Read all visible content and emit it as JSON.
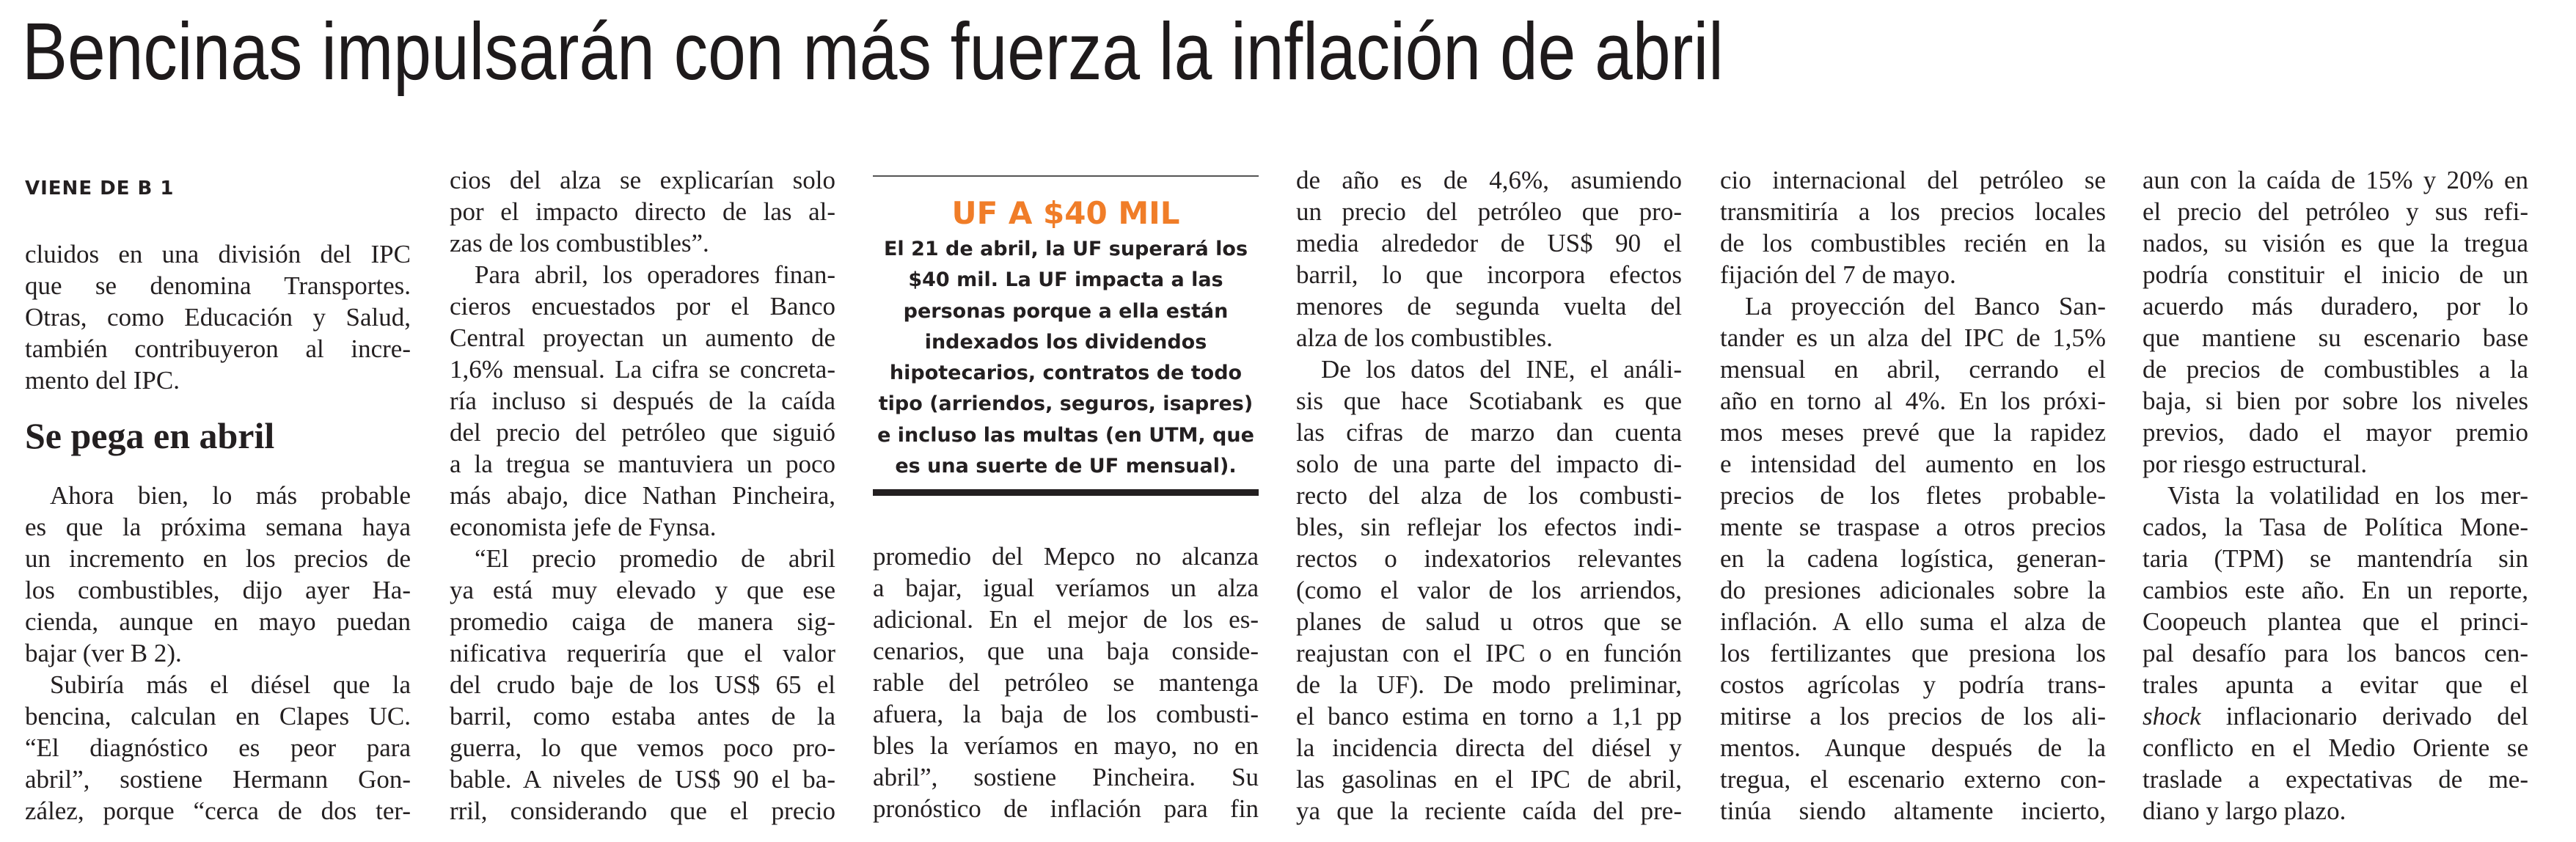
{
  "headline": "Bencinas impulsarán con más fuerza la inflación de abril",
  "kicker": "VIENE DE B 1",
  "subhead": "Se pega en abril",
  "colors": {
    "text": "#231f20",
    "box_title": "#f07d28"
  },
  "box": {
    "title": "UF A $40 MIL",
    "lines": [
      "El 21 de abril, la UF superará los",
      "$40 mil. La UF impacta a las",
      "personas porque a ella están",
      "indexados los dividendos",
      "hipotecarios, contratos de todo",
      "tipo (arriendos, seguros, isapres)",
      "e incluso las multas (en UTM, que",
      "es una suerte de UF mensual)."
    ]
  },
  "columns": [
    {
      "id": "col1a",
      "paragraphs": [
        {
          "indent": false,
          "ends": true,
          "lines": [
            "cluidos en una división del IPC",
            "que se denomina Transportes.",
            "Otras, como Educación y Salud,",
            "también contribuyeron al incre-",
            "mento del IPC."
          ]
        }
      ]
    },
    {
      "id": "col1b",
      "paragraphs": [
        {
          "indent": true,
          "ends": true,
          "lines": [
            "Ahora bien, lo más probable",
            "es que la próxima semana haya",
            "un incremento en los precios de",
            "los combustibles, dijo ayer Ha-",
            "cienda, aunque en mayo puedan",
            "bajar (ver B 2)."
          ]
        },
        {
          "indent": true,
          "ends": false,
          "lines": [
            "Subiría más el diésel que la",
            "bencina, calculan en Clapes UC.",
            "“El diagnóstico es peor para",
            "abril”, sostiene Hermann Gon-",
            "zález, porque “cerca de dos ter-"
          ]
        }
      ]
    },
    {
      "id": "col2",
      "paragraphs": [
        {
          "indent": false,
          "ends": true,
          "lines": [
            "cios del alza se explicarían solo",
            "por el impacto directo de las al-",
            "zas de los combustibles”."
          ]
        },
        {
          "indent": true,
          "ends": true,
          "lines": [
            "Para abril, los operadores finan-",
            "cieros encuestados por el Banco",
            "Central proyectan un aumento de",
            "1,6% mensual. La cifra se concreta-",
            "ría incluso si después de la caída",
            "del precio del petróleo que siguió",
            "a la tregua se mantuviera un poco",
            "más abajo, dice Nathan Pincheira,",
            "economista jefe de Fynsa."
          ]
        },
        {
          "indent": true,
          "ends": false,
          "lines": [
            "“El precio promedio de abril",
            "ya está muy elevado y que ese",
            "promedio caiga de manera sig-",
            "nificativa requeriría que el valor",
            "del crudo baje de los US$ 65 el",
            "barril, como estaba antes de la",
            "guerra, lo que vemos poco pro-",
            "bable. A niveles de US$ 90 el ba-",
            "rril, considerando que el precio"
          ]
        }
      ]
    },
    {
      "id": "col3",
      "paragraphs": [
        {
          "indent": false,
          "ends": false,
          "lines": [
            "promedio del Mepco no alcanza",
            "a bajar, igual veríamos un alza",
            "adicional. En el mejor de los es-",
            "cenarios, que una baja conside-",
            "rable del petróleo se mantenga",
            "afuera, la baja de los combusti-",
            "bles la veríamos en mayo, no en",
            "abril”, sostiene Pincheira. Su",
            "pronóstico de inflación para fin"
          ]
        }
      ]
    },
    {
      "id": "col4",
      "paragraphs": [
        {
          "indent": false,
          "ends": true,
          "lines": [
            "de año es de 4,6%, asumiendo",
            "un precio del petróleo que pro-",
            "media alrededor de US$ 90 el",
            "barril, lo que incorpora efectos",
            "menores de segunda vuelta del",
            "alza de los combustibles."
          ]
        },
        {
          "indent": true,
          "ends": false,
          "lines": [
            "De los datos del INE, el análi-",
            "sis que hace Scotiabank es que",
            "las cifras de marzo dan cuenta",
            "solo de una parte del impacto di-",
            "recto del alza de los combusti-",
            "bles, sin reflejar los efectos indi-",
            "rectos o indexatorios relevantes",
            "(como el valor de los arriendos,",
            "planes de salud u otros que se",
            "reajustan con el IPC o en función",
            "de la UF). De modo preliminar,",
            "el banco estima en torno a 1,1 pp",
            "la incidencia directa del diésel y",
            "las gasolinas en el IPC de abril,",
            "ya que la reciente caída del pre-"
          ]
        }
      ]
    },
    {
      "id": "col5",
      "paragraphs": [
        {
          "indent": false,
          "ends": true,
          "lines": [
            "cio internacional del petróleo se",
            "transmitiría a los precios locales",
            "de los combustibles recién en la",
            "fijación del 7 de mayo."
          ]
        },
        {
          "indent": true,
          "ends": false,
          "lines": [
            "La proyección del Banco San-",
            "tander es un alza del IPC de 1,5%",
            "mensual en abril, cerrando el",
            "año en torno al 4%. En los próxi-",
            "mos meses prevé que la rapidez",
            "e intensidad del aumento en los",
            "precios de los fletes probable-",
            "mente se traspase a otros precios",
            "en la cadena logística, generan-",
            "do presiones adicionales sobre la",
            "inflación. A ello suma el alza de",
            "los fertilizantes que presiona los",
            "costos agrícolas y podría trans-",
            "mitirse a los precios de los ali-",
            "mentos. Aunque después de la",
            "tregua, el escenario externo con-",
            "tinúa siendo altamente incierto,"
          ]
        }
      ]
    },
    {
      "id": "col6",
      "paragraphs": [
        {
          "indent": false,
          "ends": true,
          "lines": [
            "aun con la caída de 15% y 20% en",
            "el precio del petróleo y sus refi-",
            "nados, su visión es que la tregua",
            "podría constituir el inicio de un",
            "acuerdo más duradero, por lo",
            "que mantiene su escenario base",
            "de precios de combustibles a la",
            "baja, si bien por sobre los niveles",
            "previos, dado el mayor premio",
            "por riesgo estructural."
          ]
        },
        {
          "indent": true,
          "ends": true,
          "lines": [
            "Vista la volatilidad en los mer-",
            "cados, la Tasa de Política Mone-",
            "taria (TPM) se mantendría sin",
            "cambios este año. En un reporte,",
            "Coopeuch plantea que el princi-",
            "pal desafío para los bancos cen-",
            "trales apunta a evitar que el",
            {
              "italic": "shock",
              "rest": " inflacionario derivado del"
            },
            "conflicto en el Medio Oriente se",
            "traslade a expectativas de me-",
            "diano y largo plazo."
          ]
        }
      ]
    }
  ]
}
